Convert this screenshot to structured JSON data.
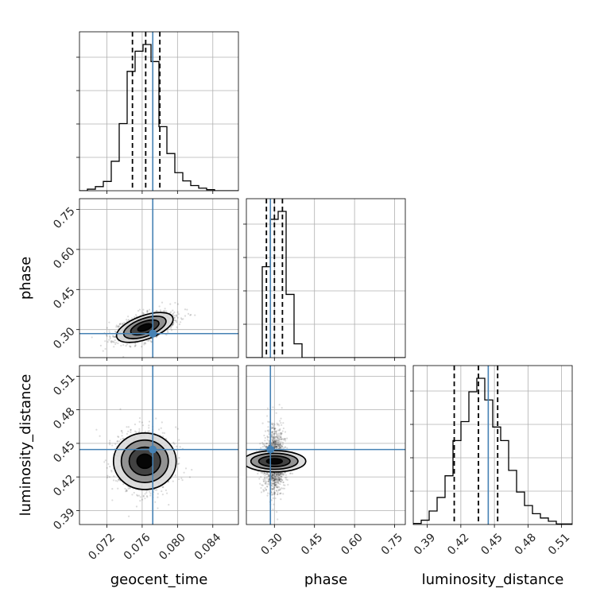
{
  "chart_data": {
    "type": "corner",
    "parameters": [
      "geocent_time",
      "phase",
      "luminosity_distance"
    ],
    "truth": {
      "geocent_time": 0.0772,
      "phase": 0.285,
      "luminosity_distance": 0.4445
    },
    "colors": {
      "truth": "#4682b4",
      "hist": "#000000",
      "grid": "#b0b0b0",
      "quantile": "#000000"
    },
    "axes": {
      "geocent_time": {
        "range": [
          0.0689,
          0.0869
        ],
        "ticks": [
          0.072,
          0.076,
          0.08,
          0.084
        ],
        "tick_labels": [
          "0.072",
          "0.076",
          "0.080",
          "0.084"
        ]
      },
      "phase": {
        "range": [
          0.195,
          0.79
        ],
        "ticks": [
          0.3,
          0.45,
          0.6,
          0.75
        ],
        "tick_labels": [
          "0.30",
          "0.45",
          "0.60",
          "0.75"
        ]
      },
      "luminosity_distance": {
        "range": [
          0.3775,
          0.5195
        ],
        "ticks": [
          0.39,
          0.42,
          0.45,
          0.48,
          0.51
        ],
        "tick_labels": [
          "0.39",
          "0.42",
          "0.45",
          "0.48",
          "0.51"
        ]
      }
    },
    "hist_1d": {
      "geocent_time": {
        "bins": [
          0.0689,
          0.0698,
          0.0707,
          0.0716,
          0.0725,
          0.0734,
          0.0743,
          0.0752,
          0.0761,
          0.077,
          0.0779,
          0.0788,
          0.0797,
          0.0806,
          0.0815,
          0.0824,
          0.0833,
          0.0842,
          0.0851,
          0.086,
          0.0869
        ],
        "counts": [
          0,
          3,
          8,
          18,
          57,
          130,
          231,
          270,
          283,
          250,
          124,
          72,
          35,
          19,
          10,
          5,
          2,
          0,
          0,
          0
        ],
        "quantiles": [
          0.0749,
          0.0764,
          0.078
        ]
      },
      "phase": {
        "bins": [
          0.195,
          0.2248,
          0.2545,
          0.2843,
          0.314,
          0.3438,
          0.3735,
          0.4033,
          0.433,
          0.4628,
          0.4925,
          0.5223,
          0.552,
          0.5818,
          0.6115,
          0.6413,
          0.671,
          0.7008,
          0.7305,
          0.7603,
          0.79
        ],
        "counts": [
          0,
          0,
          230,
          350,
          370,
          160,
          35,
          0,
          0,
          0,
          0,
          0,
          0,
          0,
          0,
          0,
          0,
          0,
          0,
          0
        ],
        "quantiles": [
          0.27,
          0.3,
          0.33
        ]
      },
      "luminosity_distance": {
        "bins": [
          0.3775,
          0.3846,
          0.3917,
          0.3988,
          0.4059,
          0.413,
          0.4201,
          0.4272,
          0.4343,
          0.4414,
          0.4485,
          0.4556,
          0.4627,
          0.4698,
          0.4769,
          0.484,
          0.4911,
          0.4982,
          0.5053,
          0.5124,
          0.5195
        ],
        "counts": [
          2,
          8,
          25,
          50,
          90,
          155,
          190,
          245,
          270,
          230,
          180,
          155,
          100,
          60,
          35,
          20,
          12,
          6,
          1,
          1
        ],
        "quantiles": [
          0.4141,
          0.4357,
          0.4529
        ]
      }
    },
    "hist_2d": {
      "phase_vs_geocent_time": {
        "center": [
          0.0763,
          0.308
        ],
        "sd": [
          0.0016,
          0.028
        ],
        "corr": 0.55
      },
      "luminosity_distance_vs_geocent_time": {
        "center": [
          0.0763,
          0.434
        ],
        "sd": [
          0.0016,
          0.014
        ],
        "corr": 0
      },
      "luminosity_distance_vs_phase": {
        "center": [
          0.3,
          0.434
        ],
        "sd": [
          0.02,
          0.014
        ],
        "corr": 0
      }
    },
    "contour_levels_sigma": [
      0.5,
      1.0,
      1.5,
      2.0
    ],
    "grid": true
  }
}
